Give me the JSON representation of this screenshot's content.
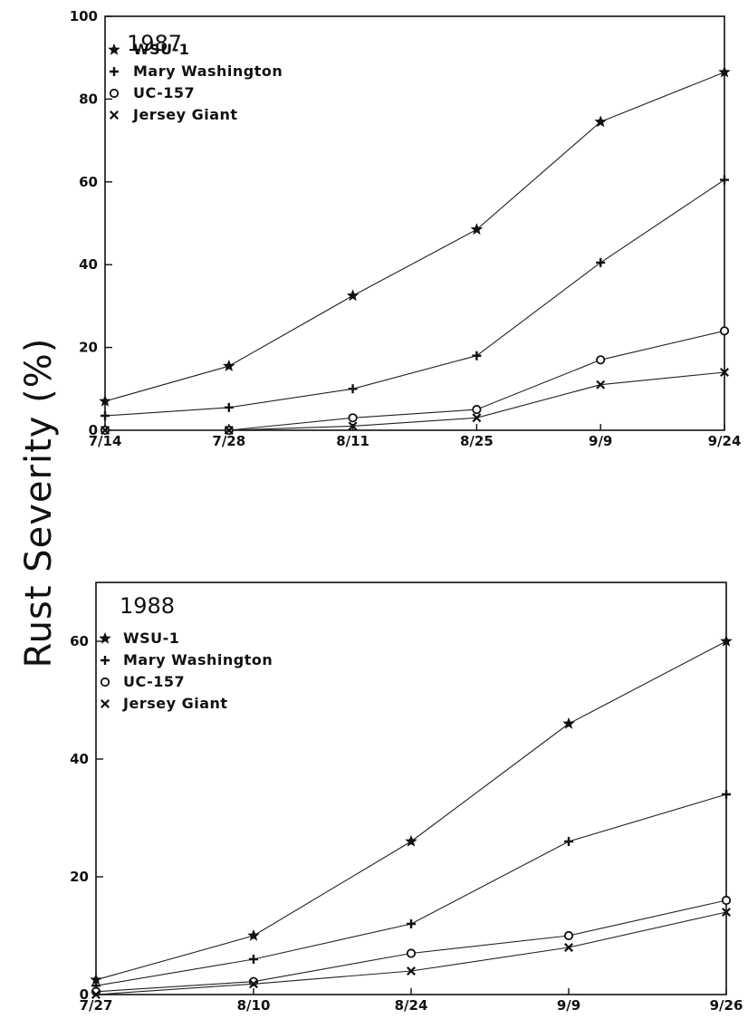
{
  "figure": {
    "ylabel": "Rust Severity (%)"
  },
  "chart_data": [
    {
      "type": "line",
      "title": "1987",
      "xlabel": "",
      "ylabel": "Rust Severity (%)",
      "categories": [
        "7/14",
        "7/28",
        "8/11",
        "8/25",
        "9/9",
        "9/24"
      ],
      "ylim": [
        0,
        100
      ],
      "yticks": [
        0,
        20,
        40,
        60,
        80,
        100
      ],
      "grid": false,
      "legend_position": "top-left",
      "series": [
        {
          "name": "WSU-1",
          "marker": "star",
          "values": [
            7,
            15.5,
            32.5,
            48.5,
            74.5,
            86.5
          ]
        },
        {
          "name": "Mary Washington",
          "marker": "plus",
          "values": [
            3.5,
            5.5,
            10,
            18,
            40.5,
            60.5
          ]
        },
        {
          "name": "UC-157",
          "marker": "circle",
          "values": [
            0,
            0,
            3,
            5,
            17,
            24
          ]
        },
        {
          "name": "Jersey Giant",
          "marker": "x",
          "values": [
            0,
            0,
            1,
            3,
            11,
            14
          ]
        }
      ]
    },
    {
      "type": "line",
      "title": "1988",
      "xlabel": "",
      "ylabel": "Rust Severity (%)",
      "categories": [
        "7/27",
        "8/10",
        "8/24",
        "9/9",
        "9/26"
      ],
      "ylim": [
        0,
        70
      ],
      "yticks": [
        0,
        20,
        40,
        60
      ],
      "grid": false,
      "legend_position": "top-left",
      "series": [
        {
          "name": "WSU-1",
          "marker": "star",
          "values": [
            2.5,
            10,
            26,
            46,
            60
          ]
        },
        {
          "name": "Mary Washington",
          "marker": "plus",
          "values": [
            1.5,
            6,
            12,
            26,
            34
          ]
        },
        {
          "name": "UC-157",
          "marker": "circle",
          "values": [
            0.5,
            2.2,
            7,
            10,
            16
          ]
        },
        {
          "name": "Jersey Giant",
          "marker": "x",
          "values": [
            0,
            1.8,
            4,
            8,
            14
          ]
        }
      ]
    }
  ]
}
